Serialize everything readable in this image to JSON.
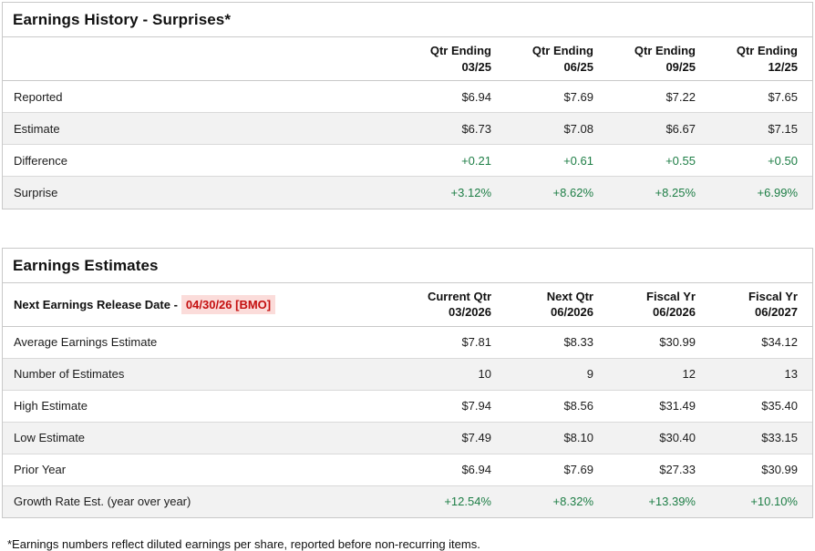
{
  "colors": {
    "positive_green": "#1e7e46",
    "alert_red_text": "#c40f0f",
    "alert_red_background": "#fbdcda",
    "alt_row_background": "#f2f2f2",
    "panel_border": "#c9c9c9"
  },
  "history": {
    "title": "Earnings History - Surprises*",
    "columns": [
      {
        "line1": "Qtr Ending",
        "line2": "03/25"
      },
      {
        "line1": "Qtr Ending",
        "line2": "06/25"
      },
      {
        "line1": "Qtr Ending",
        "line2": "09/25"
      },
      {
        "line1": "Qtr Ending",
        "line2": "12/25"
      }
    ],
    "rows": [
      {
        "label": "Reported",
        "type": "normal",
        "values": [
          "$6.94",
          "$7.69",
          "$7.22",
          "$7.65"
        ]
      },
      {
        "label": "Estimate",
        "type": "normal",
        "values": [
          "$6.73",
          "$7.08",
          "$6.67",
          "$7.15"
        ]
      },
      {
        "label": "Difference",
        "type": "positive",
        "values": [
          "+0.21",
          "+0.61",
          "+0.55",
          "+0.50"
        ]
      },
      {
        "label": "Surprise",
        "type": "positive",
        "values": [
          "+3.12%",
          "+8.62%",
          "+8.25%",
          "+6.99%"
        ]
      }
    ]
  },
  "estimates": {
    "title": "Earnings Estimates",
    "release_label": "Next Earnings Release Date -",
    "release_date": "04/30/26 [BMO]",
    "columns": [
      {
        "line1": "Current Qtr",
        "line2": "03/2026"
      },
      {
        "line1": "Next Qtr",
        "line2": "06/2026"
      },
      {
        "line1": "Fiscal Yr",
        "line2": "06/2026"
      },
      {
        "line1": "Fiscal Yr",
        "line2": "06/2027"
      }
    ],
    "rows": [
      {
        "label": "Average Earnings Estimate",
        "type": "normal",
        "values": [
          "$7.81",
          "$8.33",
          "$30.99",
          "$34.12"
        ]
      },
      {
        "label": "Number of Estimates",
        "type": "normal",
        "values": [
          "10",
          "9",
          "12",
          "13"
        ]
      },
      {
        "label": "High Estimate",
        "type": "normal",
        "values": [
          "$7.94",
          "$8.56",
          "$31.49",
          "$35.40"
        ]
      },
      {
        "label": "Low Estimate",
        "type": "normal",
        "values": [
          "$7.49",
          "$8.10",
          "$30.40",
          "$33.15"
        ]
      },
      {
        "label": "Prior Year",
        "type": "normal",
        "values": [
          "$6.94",
          "$7.69",
          "$27.33",
          "$30.99"
        ]
      },
      {
        "label": "Growth Rate Est. (year over year)",
        "type": "positive",
        "values": [
          "+12.54%",
          "+8.32%",
          "+13.39%",
          "+10.10%"
        ]
      }
    ]
  },
  "footnote": "*Earnings numbers reflect diluted earnings per share, reported before non-recurring items."
}
